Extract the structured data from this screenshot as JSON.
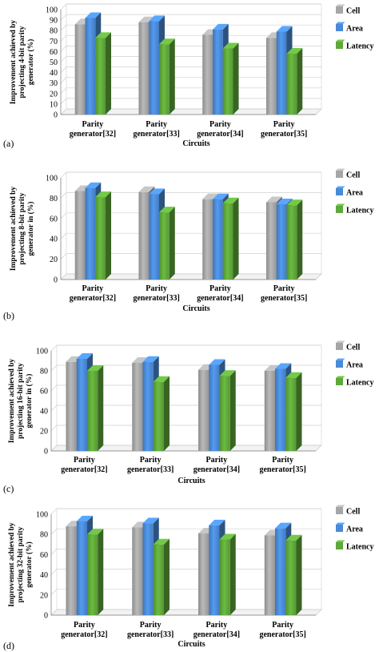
{
  "figure": {
    "legend_position": "right",
    "colors": {
      "Cell": "#a6a6a6",
      "Area": "#4a8ad6",
      "Latency": "#5fa83a"
    }
  },
  "chart_data": [
    {
      "panel_label": "(a)",
      "type": "bar",
      "categories": [
        "Parity generator[32]",
        "Parity generator[33]",
        "Parity generator[34]",
        "Parity generator[35]"
      ],
      "series": [
        {
          "name": "Cell",
          "values": [
            86,
            88,
            76,
            73
          ]
        },
        {
          "name": "Area",
          "values": [
            92,
            89,
            81,
            79
          ]
        },
        {
          "name": "Latency",
          "values": [
            73,
            67,
            63,
            58
          ]
        }
      ],
      "xlabel": "Circuits",
      "ylabel": "Improvement achieved by projecting 4-bit parity generator (%)",
      "ylim": [
        0,
        100
      ],
      "yticks": [
        0,
        10,
        20,
        30,
        40,
        50,
        60,
        70,
        80,
        90,
        100
      ],
      "grid": true,
      "legend": "right"
    },
    {
      "panel_label": "(b)",
      "type": "bar",
      "categories": [
        "Parity generator[32]",
        "Parity generator[33]",
        "Parity generator[34]",
        "Parity generator[35]"
      ],
      "series": [
        {
          "name": "Cell",
          "values": [
            87,
            86,
            79,
            76
          ]
        },
        {
          "name": "Area",
          "values": [
            90,
            84,
            79,
            74
          ]
        },
        {
          "name": "Latency",
          "values": [
            81,
            66,
            75,
            73
          ]
        }
      ],
      "xlabel": "Circuits",
      "ylabel": "Improvement achieved by projecting 8-bit parity generator in (%)",
      "ylim": [
        0,
        100
      ],
      "yticks": [
        0,
        20,
        40,
        60,
        80,
        100
      ],
      "grid": true,
      "legend": "right"
    },
    {
      "panel_label": "(c)",
      "type": "bar",
      "categories": [
        "Parity generator[32]",
        "Parity generator[33]",
        "Parity generator[34]",
        "Parity generator[35]"
      ],
      "series": [
        {
          "name": "Cell",
          "values": [
            89,
            88,
            81,
            80
          ]
        },
        {
          "name": "Area",
          "values": [
            92,
            89,
            86,
            82
          ]
        },
        {
          "name": "Latency",
          "values": [
            80,
            69,
            75,
            73
          ]
        }
      ],
      "xlabel": "Circuits",
      "ylabel": "Improvement achieved by projecting 16-bit parity generator in (%)",
      "ylim": [
        0,
        100
      ],
      "yticks": [
        0,
        20,
        40,
        60,
        80,
        100
      ],
      "grid": true,
      "legend": "right"
    },
    {
      "panel_label": "(d)",
      "type": "bar",
      "categories": [
        "Parity generator[32]",
        "Parity generator[33]",
        "Parity generator[34]",
        "Parity generator[35]"
      ],
      "series": [
        {
          "name": "Cell",
          "values": [
            88,
            87,
            81,
            79
          ]
        },
        {
          "name": "Area",
          "values": [
            93,
            91,
            89,
            86
          ]
        },
        {
          "name": "Latency",
          "values": [
            80,
            70,
            75,
            74
          ]
        }
      ],
      "xlabel": "Circuits",
      "ylabel": "Improvement achieved by projecting 32-bit parity generator (%)",
      "ylim": [
        0,
        100
      ],
      "yticks": [
        0,
        20,
        40,
        60,
        80,
        100
      ],
      "grid": true,
      "legend": "right"
    }
  ]
}
